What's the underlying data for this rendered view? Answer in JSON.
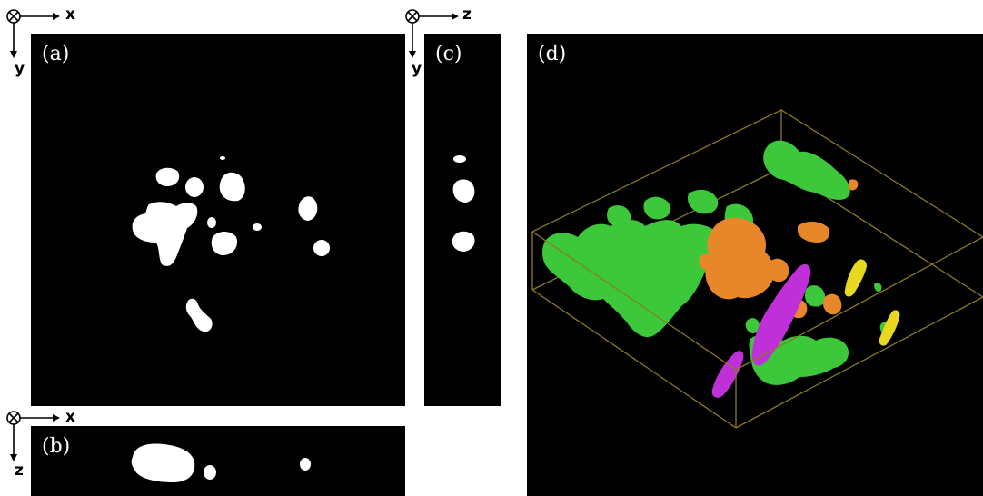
{
  "panels": {
    "a": {
      "label": "(a)"
    },
    "b": {
      "label": "(b)"
    },
    "c": {
      "label": "(c)"
    },
    "d": {
      "label": "(d)"
    }
  },
  "axes": {
    "a_h": "x",
    "a_v": "y",
    "b_h": "x",
    "b_v": "z",
    "c_h": "z",
    "c_v": "y"
  },
  "colors": {
    "background": "#000000",
    "blob": "#ffffff",
    "green": "#3cc83a",
    "orange": "#e8862a",
    "magenta": "#c030d8",
    "yellow": "#e8d820",
    "box": "#8a7a20"
  }
}
